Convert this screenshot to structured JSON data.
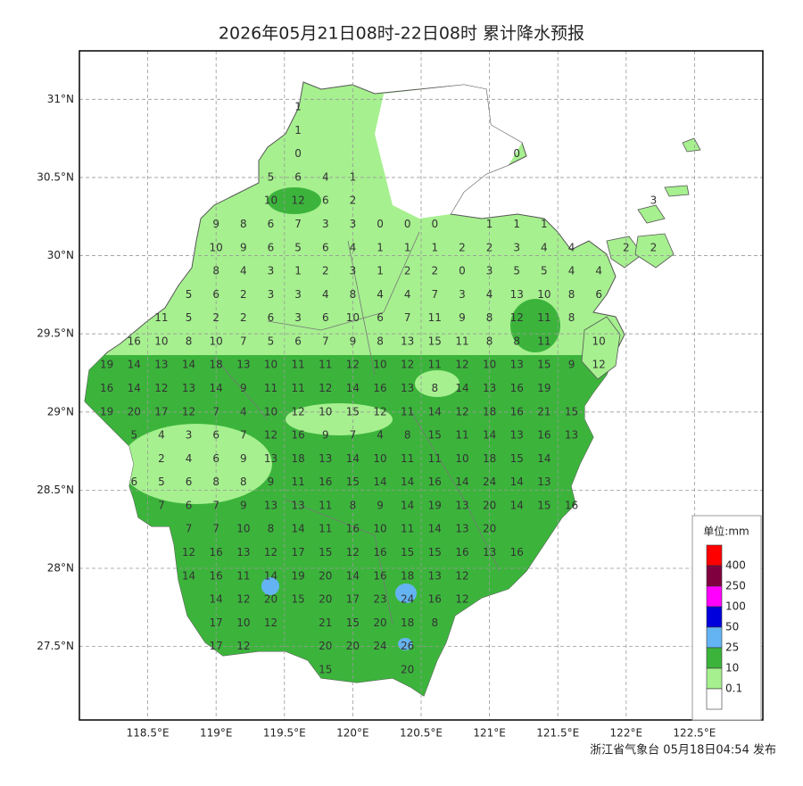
{
  "title": "2026年05月21日08时-22日08时 累计降水预报",
  "map": {
    "xlim": [
      118.0,
      123.0
    ],
    "ylim": [
      27.03,
      31.31
    ],
    "xticks": [
      {
        "value": 118.5,
        "label": "118.5°E"
      },
      {
        "value": 119,
        "label": "119°E"
      },
      {
        "value": 119.5,
        "label": "119.5°E"
      },
      {
        "value": 120,
        "label": "120°E"
      },
      {
        "value": 120.5,
        "label": "120.5°E"
      },
      {
        "value": 121,
        "label": "121°E"
      },
      {
        "value": 121.5,
        "label": "121.5°E"
      },
      {
        "value": 122,
        "label": "122°E"
      },
      {
        "value": 122.5,
        "label": "122.5°E"
      }
    ],
    "yticks": [
      {
        "value": 27.5,
        "label": "27.5°N"
      },
      {
        "value": 28,
        "label": "28°N"
      },
      {
        "value": 28.5,
        "label": "28.5°N"
      },
      {
        "value": 29,
        "label": "29°N"
      },
      {
        "value": 29.5,
        "label": "29.5°N"
      },
      {
        "value": 30,
        "label": "30°N"
      },
      {
        "value": 30.5,
        "label": "30.5°N"
      },
      {
        "value": 31,
        "label": "31°N"
      }
    ],
    "grid": true,
    "grid_values": [
      [
        null,
        null,
        null,
        null,
        null,
        null,
        null,
        1,
        null,
        null,
        null,
        null,
        null,
        null,
        null,
        null,
        null,
        null,
        null,
        null,
        null
      ],
      [
        null,
        null,
        null,
        null,
        null,
        null,
        null,
        1,
        null,
        null,
        null,
        null,
        null,
        null,
        null,
        null,
        null,
        null,
        null,
        null,
        null
      ],
      [
        null,
        null,
        null,
        null,
        null,
        null,
        null,
        0,
        null,
        null,
        null,
        null,
        null,
        null,
        null,
        0,
        null,
        null,
        null,
        null,
        null
      ],
      [
        null,
        null,
        null,
        null,
        null,
        null,
        5,
        6,
        4,
        1,
        null,
        null,
        null,
        null,
        null,
        null,
        null,
        null,
        null,
        null,
        null
      ],
      [
        null,
        null,
        null,
        null,
        null,
        null,
        10,
        12,
        6,
        2,
        null,
        null,
        null,
        null,
        null,
        null,
        null,
        null,
        null,
        null,
        3
      ],
      [
        null,
        null,
        null,
        null,
        9,
        8,
        6,
        7,
        3,
        3,
        0,
        0,
        0,
        null,
        1,
        1,
        1,
        null,
        null,
        null,
        null
      ],
      [
        null,
        null,
        null,
        null,
        10,
        9,
        6,
        5,
        6,
        4,
        1,
        1,
        1,
        2,
        2,
        3,
        4,
        4,
        null,
        2,
        2
      ],
      [
        null,
        null,
        null,
        null,
        8,
        4,
        3,
        1,
        2,
        3,
        1,
        2,
        2,
        0,
        3,
        5,
        5,
        4,
        4,
        null,
        null
      ],
      [
        null,
        null,
        null,
        5,
        6,
        2,
        3,
        3,
        4,
        8,
        4,
        4,
        7,
        3,
        4,
        13,
        10,
        8,
        6,
        null,
        null
      ],
      [
        null,
        null,
        11,
        5,
        2,
        2,
        6,
        3,
        6,
        10,
        6,
        7,
        11,
        9,
        8,
        12,
        11,
        8,
        null,
        null,
        null
      ],
      [
        null,
        16,
        10,
        8,
        10,
        7,
        5,
        6,
        7,
        9,
        8,
        13,
        15,
        11,
        8,
        8,
        11,
        null,
        10,
        null,
        null
      ],
      [
        19,
        14,
        13,
        14,
        18,
        13,
        10,
        11,
        11,
        12,
        10,
        12,
        11,
        12,
        10,
        13,
        15,
        9,
        12,
        null,
        null
      ],
      [
        16,
        14,
        12,
        13,
        14,
        9,
        11,
        11,
        12,
        14,
        16,
        13,
        8,
        14,
        13,
        16,
        19,
        null,
        null,
        null,
        null
      ],
      [
        19,
        20,
        17,
        12,
        7,
        4,
        10,
        12,
        10,
        15,
        12,
        11,
        14,
        12,
        18,
        16,
        21,
        15,
        null,
        null,
        null
      ],
      [
        null,
        5,
        4,
        3,
        6,
        7,
        12,
        16,
        9,
        7,
        4,
        8,
        15,
        11,
        14,
        13,
        16,
        13,
        null,
        null,
        null
      ],
      [
        null,
        null,
        2,
        4,
        6,
        9,
        13,
        18,
        13,
        14,
        10,
        11,
        11,
        10,
        18,
        15,
        14,
        null,
        null,
        null,
        null
      ],
      [
        null,
        6,
        5,
        6,
        8,
        8,
        9,
        11,
        16,
        15,
        14,
        14,
        16,
        14,
        24,
        14,
        13,
        null,
        null,
        null,
        null
      ],
      [
        null,
        null,
        7,
        6,
        7,
        9,
        13,
        13,
        11,
        8,
        9,
        14,
        19,
        13,
        20,
        14,
        15,
        16,
        null,
        null,
        null
      ],
      [
        null,
        null,
        null,
        7,
        7,
        10,
        8,
        14,
        11,
        16,
        10,
        11,
        14,
        13,
        20,
        null,
        null,
        null,
        null,
        null,
        null
      ],
      [
        null,
        null,
        null,
        12,
        16,
        13,
        12,
        17,
        15,
        12,
        16,
        15,
        15,
        16,
        13,
        16,
        null,
        null,
        null,
        null,
        null
      ],
      [
        null,
        null,
        null,
        14,
        16,
        11,
        14,
        19,
        20,
        14,
        16,
        18,
        13,
        12,
        null,
        null,
        null,
        null,
        null,
        null,
        null
      ],
      [
        null,
        null,
        null,
        null,
        14,
        12,
        20,
        15,
        20,
        17,
        23,
        24,
        16,
        12,
        null,
        null,
        null,
        null,
        null,
        null,
        null
      ],
      [
        null,
        null,
        null,
        null,
        17,
        10,
        12,
        null,
        21,
        15,
        20,
        18,
        8,
        null,
        null,
        null,
        null,
        null,
        null,
        null,
        null
      ],
      [
        null,
        null,
        null,
        null,
        17,
        12,
        null,
        null,
        20,
        20,
        24,
        26,
        null,
        null,
        null,
        null,
        null,
        null,
        null,
        null,
        null
      ],
      [
        null,
        null,
        null,
        null,
        null,
        null,
        null,
        null,
        15,
        null,
        null,
        20,
        null,
        null,
        null,
        null,
        null,
        null,
        null,
        null,
        null
      ]
    ]
  },
  "legend": {
    "title": "单位:mm",
    "colors": [
      "#ff0000",
      "#80003f",
      "#ff00ff",
      "#0000dd",
      "#64b4f4",
      "#3cb43c",
      "#a6f08f",
      "#ffffff"
    ],
    "labels": [
      400,
      250,
      100,
      50,
      25,
      10,
      0.1
    ]
  },
  "footer": "浙江省气象台 05月18日04:54 发布"
}
